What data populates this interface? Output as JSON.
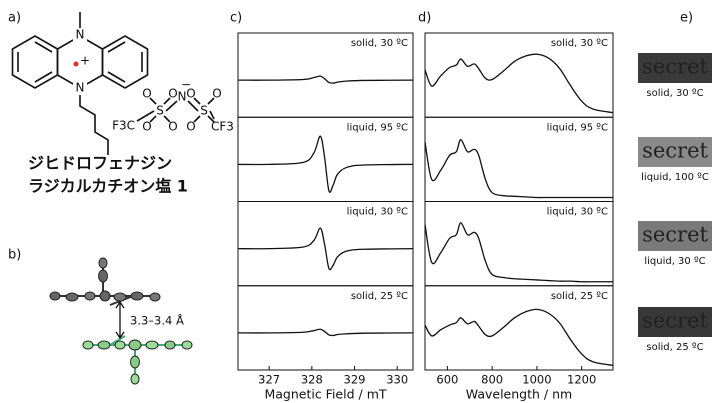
{
  "panel_labels": [
    "a)",
    "b)",
    "c)",
    "d)",
    "e)"
  ],
  "molecule": {
    "n": "N",
    "charge": "+",
    "f3c": "F3C",
    "s": "S",
    "o": "O",
    "anion_n": "N",
    "anion_charge": "−",
    "cf3": "CF3"
  },
  "compound_name": [
    "ジヒドロフェナジン",
    "ラジカルカチオン塩 1"
  ],
  "crystal": {
    "distance_label": "3.3–3.4 Å"
  },
  "photos": [
    {
      "text": "secret",
      "caption": "solid, 30 ºC",
      "background": "#3a3a3a"
    },
    {
      "text": "secret",
      "caption": "liquid, 100 ºC",
      "background": "#8a8a8a"
    },
    {
      "text": "secret",
      "caption": "liquid, 30 ºC",
      "background": "#7a7a7a"
    },
    {
      "text": "secret",
      "caption": "solid, 25 ºC",
      "background": "#383838"
    }
  ],
  "chart_data": [
    {
      "type": "line",
      "xlabel": "Magnetic Field / mT",
      "xlim": [
        326.27,
        330.37
      ],
      "xticks": [
        327,
        328,
        329,
        330
      ],
      "ylim": [
        -1,
        1
      ],
      "x": [
        326.27,
        327,
        327.8,
        328.05,
        328.2,
        328.3,
        328.4,
        328.5,
        328.6,
        328.8,
        329.2,
        330.37
      ],
      "series": [
        {
          "name": "solid, 30 ºC",
          "color": "#111111",
          "values": [
            0,
            0,
            0.02,
            0.08,
            0.12,
            0.04,
            -0.07,
            -0.09,
            -0.06,
            -0.03,
            -0.01,
            0
          ]
        },
        {
          "name": "liquid, 95 ºC",
          "color": "#111111",
          "values": [
            0,
            0,
            0.06,
            0.35,
            0.85,
            0.2,
            -0.8,
            -0.62,
            -0.3,
            -0.1,
            -0.02,
            0
          ]
        },
        {
          "name": "liquid, 30 ºC",
          "color": "#111111",
          "values": [
            0,
            0,
            0.05,
            0.25,
            0.62,
            0.12,
            -0.6,
            -0.5,
            -0.25,
            -0.08,
            -0.02,
            0
          ]
        },
        {
          "name": "solid, 25 ºC",
          "color": "#111111",
          "values": [
            0,
            0,
            0.02,
            0.07,
            0.11,
            0.04,
            -0.06,
            -0.08,
            -0.05,
            -0.03,
            -0.01,
            0
          ]
        }
      ]
    },
    {
      "type": "line",
      "xlabel": "Wavelength / nm",
      "xlim": [
        500,
        1340
      ],
      "xticks": [
        600,
        800,
        1000,
        1200
      ],
      "ylim": [
        0,
        1.1
      ],
      "x": [
        500,
        530,
        570,
        610,
        640,
        660,
        690,
        720,
        740,
        770,
        800,
        850,
        900,
        950,
        1000,
        1050,
        1100,
        1150,
        1200,
        1250,
        1340
      ],
      "series": [
        {
          "name": "solid, 30 ºC",
          "color": "#111111",
          "values": [
            0.72,
            0.45,
            0.62,
            0.76,
            0.8,
            0.9,
            0.78,
            0.82,
            0.74,
            0.58,
            0.56,
            0.7,
            0.86,
            0.95,
            0.98,
            0.92,
            0.75,
            0.46,
            0.2,
            0.07,
            0.01
          ]
        },
        {
          "name": "liquid, 95 ºC",
          "color": "#111111",
          "values": [
            0.92,
            0.3,
            0.45,
            0.7,
            0.76,
            0.96,
            0.76,
            0.8,
            0.7,
            0.3,
            0.08,
            0.03,
            0.02,
            0.01,
            0,
            0,
            0,
            0,
            0,
            0,
            0
          ]
        },
        {
          "name": "liquid, 30 ºC",
          "color": "#111111",
          "values": [
            0.95,
            0.32,
            0.48,
            0.72,
            0.78,
            0.98,
            0.78,
            0.82,
            0.72,
            0.34,
            0.12,
            0.07,
            0.05,
            0.04,
            0.03,
            0.02,
            0.01,
            0.01,
            0,
            0,
            0
          ]
        },
        {
          "name": "solid, 25 ºC",
          "color": "#111111",
          "values": [
            0.68,
            0.5,
            0.6,
            0.68,
            0.72,
            0.8,
            0.7,
            0.74,
            0.66,
            0.52,
            0.5,
            0.64,
            0.8,
            0.9,
            0.94,
            0.88,
            0.72,
            0.44,
            0.2,
            0.07,
            0.01
          ]
        }
      ]
    }
  ]
}
